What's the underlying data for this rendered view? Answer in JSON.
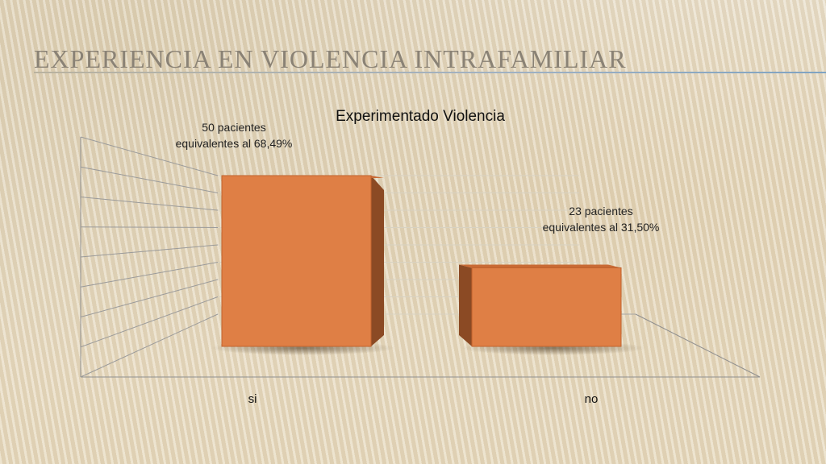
{
  "slide": {
    "title": "EXPERIENCIA EN VIOLENCIA INTRAFAMILIAR"
  },
  "colors": {
    "bar_front": "#df7f45",
    "bar_side": "#8b4a24",
    "bar_top": "#c96a34",
    "title_text": "#8a8275"
  },
  "chart_data": {
    "type": "bar",
    "title": "Experimentado Violencia",
    "categories": [
      "si",
      "no"
    ],
    "values": [
      50,
      23
    ],
    "data_labels": [
      [
        "50 pacientes",
        "equivalentes al 68,49%"
      ],
      [
        "23 pacientes",
        "equivalentes al 31,50%"
      ]
    ],
    "ylim": [
      0,
      50
    ],
    "grid": true,
    "legend": "none",
    "style": "3d"
  }
}
